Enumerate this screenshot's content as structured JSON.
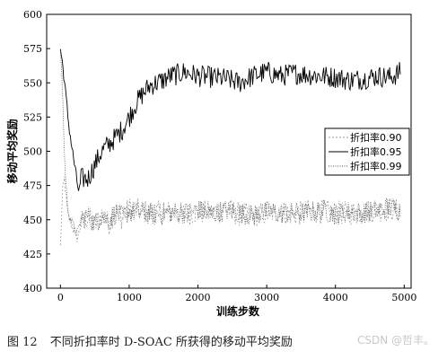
{
  "chart_data": {
    "type": "line",
    "title": "",
    "xlabel": "训练步数",
    "ylabel": "移动平均奖励",
    "xlim": [
      -200,
      5100
    ],
    "ylim": [
      400,
      600
    ],
    "xticks": [
      0,
      1000,
      2000,
      3000,
      4000,
      5000
    ],
    "yticks": [
      400,
      425,
      450,
      475,
      500,
      525,
      550,
      575,
      600
    ],
    "legend_position": "right-middle",
    "grid": false,
    "series": [
      {
        "name": "折扣率0.90",
        "color": "#9a9a9a",
        "dash": "2,2",
        "x": [
          0,
          30,
          60,
          100,
          150,
          200,
          250,
          300,
          400,
          500,
          600,
          700,
          800,
          900,
          1000,
          1200,
          1400,
          1600,
          1800,
          2000,
          2200,
          2400,
          2600,
          2800,
          3000,
          3200,
          3400,
          3600,
          3800,
          4000,
          4200,
          4400,
          4600,
          4800,
          4950
        ],
        "values": [
          430,
          470,
          480,
          455,
          448,
          442,
          436,
          448,
          452,
          446,
          454,
          447,
          457,
          451,
          458,
          456,
          455,
          455,
          454,
          456,
          455,
          458,
          454,
          453,
          455,
          456,
          454,
          456,
          456,
          455,
          455,
          456,
          457,
          458,
          456
        ]
      },
      {
        "name": "折扣率0.95",
        "color": "#000000",
        "dash": "",
        "x": [
          0,
          40,
          80,
          120,
          160,
          200,
          240,
          270,
          300,
          400,
          500,
          600,
          700,
          800,
          900,
          1000,
          1100,
          1200,
          1300,
          1400,
          1500,
          1600,
          1700,
          1800,
          2000,
          2200,
          2400,
          2600,
          2800,
          3000,
          3200,
          3400,
          3600,
          3800,
          4000,
          4200,
          4400,
          4600,
          4800,
          4950
        ],
        "values": [
          575,
          560,
          540,
          520,
          505,
          492,
          478,
          470,
          480,
          480,
          490,
          500,
          505,
          510,
          516,
          525,
          535,
          542,
          548,
          550,
          552,
          555,
          556,
          558,
          555,
          554,
          553,
          550,
          555,
          558,
          555,
          557,
          556,
          555,
          554,
          552,
          553,
          555,
          554,
          558
        ]
      },
      {
        "name": "折扣率0.99",
        "color": "#555555",
        "dash": "1,1.5",
        "x": [
          0,
          30,
          60,
          100,
          150,
          200,
          250,
          300,
          400,
          500,
          600,
          700,
          800,
          900,
          1000,
          1200,
          1400,
          1600,
          1800,
          2000,
          2200,
          2400,
          2600,
          2800,
          3000,
          3200,
          3400,
          3600,
          3800,
          4000,
          4200,
          4400,
          4600,
          4800,
          4950
        ],
        "values": [
          575,
          545,
          495,
          460,
          450,
          444,
          440,
          450,
          453,
          447,
          453,
          450,
          455,
          452,
          456,
          455,
          454,
          456,
          455,
          457,
          454,
          457,
          455,
          453,
          456,
          455,
          455,
          455,
          457,
          454,
          456,
          455,
          457,
          459,
          457
        ]
      }
    ]
  },
  "caption": {
    "number": "图 12",
    "text": "不同折扣率时 D-SOAC 所获得的移动平均奖励"
  },
  "watermark": "CSDN @哲丰。"
}
